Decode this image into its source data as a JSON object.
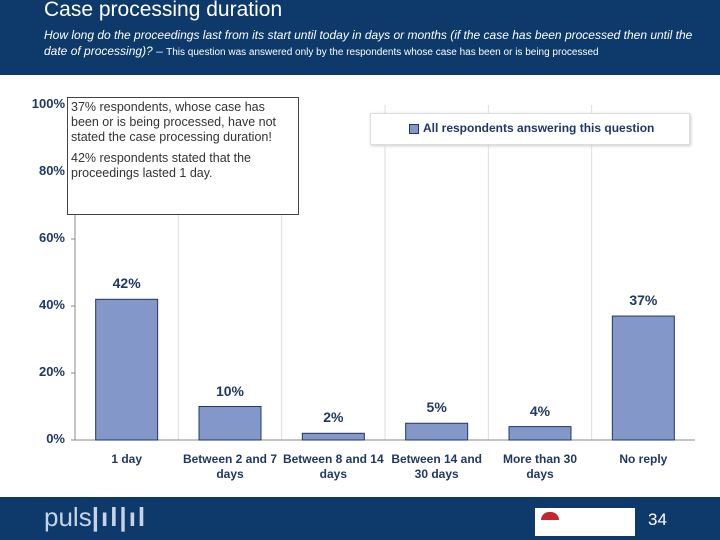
{
  "header": {
    "title": "Case processing duration",
    "subtitle_question": "How long do the proceedings last from its start until today in days or months (if the case has been processed then until the date of processing)? –",
    "subtitle_note": "This question was answered only by the respondents whose case has been or is being processed"
  },
  "chart_data": {
    "type": "bar",
    "categories": [
      "1 day",
      "Between 2 and 7 days",
      "Between 8 and 14 days",
      "Between 14 and 30 days",
      "More than 30 days",
      "No reply"
    ],
    "series": [
      {
        "name": "All respondents answering this question",
        "color": "#8497c9",
        "values": [
          42,
          10,
          2,
          5,
          4,
          37
        ],
        "value_labels": [
          "42%",
          "10%",
          "2%",
          "5%",
          "4%",
          "37%"
        ]
      }
    ],
    "ylim": [
      0,
      100
    ],
    "yticks": [
      {
        "value": 0,
        "label": "0%"
      },
      {
        "value": 20,
        "label": "20%"
      },
      {
        "value": 40,
        "label": "40%"
      },
      {
        "value": 60,
        "label": "60%"
      },
      {
        "value": 80,
        "label": "80%"
      },
      {
        "value": 100,
        "label": "100%"
      }
    ],
    "annotations": [
      "37% respondents, whose case has been or is being processed, have not stated the case processing duration!",
      "42% respondents stated that the proceedings lasted 1 day."
    ],
    "legend_position": "top-right"
  },
  "footer": {
    "logo": "puls",
    "page_number": "34"
  }
}
